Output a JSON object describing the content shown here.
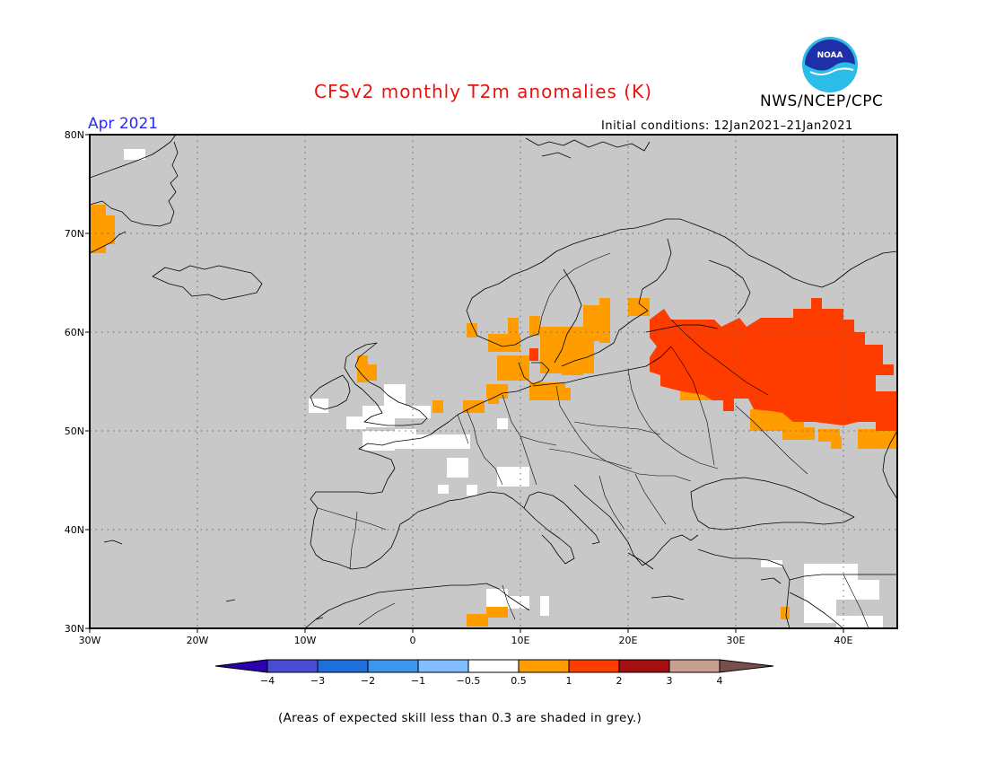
{
  "title": "CFSv2 monthly T2m anomalies (K)",
  "organization": "NWS/NCEP/CPC",
  "logo_text": "NOAA",
  "valid_month": "Apr 2021",
  "initial_conditions": "Initial conditions: 12Jan2021–21Jan2021",
  "footnote": "(Areas of expected skill less than 0.3 are shaded in grey.)",
  "map": {
    "lon_range": [
      -30,
      45
    ],
    "lat_range": [
      30,
      80
    ],
    "grid": "dotted",
    "lon_ticks": [
      {
        "lon": -30,
        "label": "30W"
      },
      {
        "lon": -20,
        "label": "20W"
      },
      {
        "lon": -10,
        "label": "10W"
      },
      {
        "lon": 0,
        "label": "0"
      },
      {
        "lon": 10,
        "label": "10E"
      },
      {
        "lon": 20,
        "label": "20E"
      },
      {
        "lon": 30,
        "label": "30E"
      },
      {
        "lon": 40,
        "label": "40E"
      }
    ],
    "lat_ticks": [
      {
        "lat": 80,
        "label": "80N"
      },
      {
        "lat": 70,
        "label": "70N"
      },
      {
        "lat": 60,
        "label": "60N"
      },
      {
        "lat": 50,
        "label": "50N"
      },
      {
        "lat": 40,
        "label": "40N"
      },
      {
        "lat": 30,
        "label": "30N"
      }
    ],
    "skill_mask_color": "#c8c8c8",
    "regions": [
      {
        "name": "western-russia",
        "category": "1 to 2",
        "lon": [
          23,
          45
        ],
        "lat": [
          50,
          63
        ]
      },
      {
        "name": "southern-sweden",
        "category": "0.5 to 1",
        "lon": [
          8,
          20
        ],
        "lat": [
          54,
          62
        ]
      },
      {
        "name": "east-greenland-coast",
        "category": "0.5 to 1",
        "lon": [
          -30,
          -27
        ],
        "lat": [
          68,
          73
        ]
      },
      {
        "name": "scotland",
        "category": "0.5 to 1",
        "lon": [
          -5,
          -3
        ],
        "lat": [
          55,
          57
        ]
      },
      {
        "name": "british-isles",
        "category": "-0.5 to 0.5",
        "lon": [
          -10,
          2
        ],
        "lat": [
          50,
          55
        ]
      },
      {
        "name": "france",
        "category": "-0.5 to 0.5",
        "lon": [
          -4,
          8
        ],
        "lat": [
          42,
          50
        ]
      },
      {
        "name": "north-africa",
        "category": "-0.5 to 0.5",
        "lon": [
          7,
          13
        ],
        "lat": [
          31,
          34
        ]
      },
      {
        "name": "middle-east",
        "category": "-0.5 to 0.5",
        "lon": [
          33,
          45
        ],
        "lat": [
          30,
          36
        ]
      }
    ]
  },
  "colorbar": {
    "colors": [
      "#2a00b0",
      "#4b4bd6",
      "#1e6edc",
      "#3c96f0",
      "#82beff",
      "#ffffff",
      "#ff9d00",
      "#ff3c00",
      "#a50f0f",
      "#c8a092",
      "#76504a"
    ],
    "labels": [
      "−4",
      "−3",
      "−2",
      "−1",
      "−0.5",
      "0.5",
      "1",
      "2",
      "3",
      "4"
    ]
  }
}
